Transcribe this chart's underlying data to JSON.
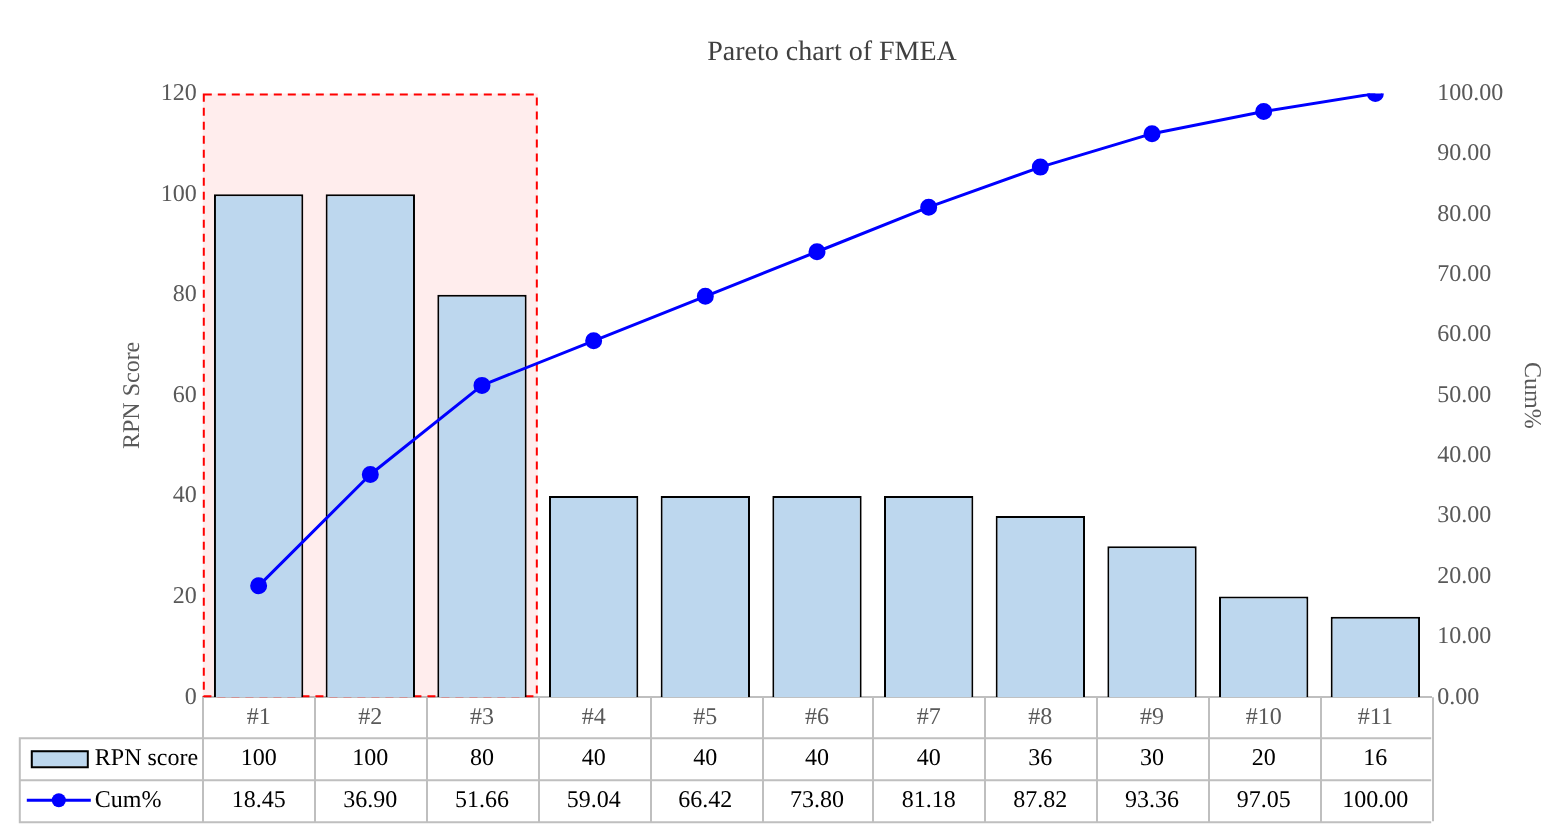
{
  "chart_data": {
    "type": "bar",
    "title": "Pareto chart of FMEA",
    "ylabel": "RPN Score",
    "y2label": "Cum%",
    "categories": [
      "#1",
      "#2",
      "#3",
      "#4",
      "#5",
      "#6",
      "#7",
      "#8",
      "#9",
      "#10",
      "#11"
    ],
    "series": [
      {
        "name": "RPN score",
        "color": "#bdd7ee",
        "values": [
          100,
          100,
          80,
          40,
          40,
          40,
          40,
          36,
          30,
          20,
          16
        ],
        "value_labels": [
          "100",
          "100",
          "80",
          "40",
          "40",
          "40",
          "40",
          "36",
          "30",
          "20",
          "16"
        ]
      },
      {
        "name": "Cum%",
        "type": "line",
        "axis": "y2",
        "color": "#0000ff",
        "values": [
          18.45,
          36.9,
          51.66,
          59.04,
          66.42,
          73.8,
          81.18,
          87.82,
          93.36,
          97.05,
          100
        ],
        "value_labels": [
          "18.45",
          "36.90",
          "51.66",
          "59.04",
          "66.42",
          "73.80",
          "81.18",
          "87.82",
          "93.36",
          "97.05",
          "100.00"
        ]
      }
    ],
    "ylim": [
      0,
      120
    ],
    "yticks": [
      0,
      20,
      40,
      60,
      80,
      100,
      120
    ],
    "y2lim": [
      0,
      100
    ],
    "y2ticks": [
      {
        "value": 0,
        "label": "0.00"
      },
      {
        "value": 10,
        "label": "10.00"
      },
      {
        "value": 20,
        "label": "20.00"
      },
      {
        "value": 30,
        "label": "30.00"
      },
      {
        "value": 40,
        "label": "40.00"
      },
      {
        "value": 50,
        "label": "50.00"
      },
      {
        "value": 60,
        "label": "60.00"
      },
      {
        "value": 70,
        "label": "70.00"
      },
      {
        "value": 80,
        "label": "80.00"
      },
      {
        "value": 90,
        "label": "90.00"
      },
      {
        "value": 100,
        "label": "100.00"
      }
    ],
    "bands": [
      {
        "axis": "x",
        "from": "#1",
        "to": "#3",
        "color": "#ff0000"
      }
    ],
    "marker": "circle",
    "line_style": "solid",
    "grid": false,
    "legend": "bottom"
  }
}
